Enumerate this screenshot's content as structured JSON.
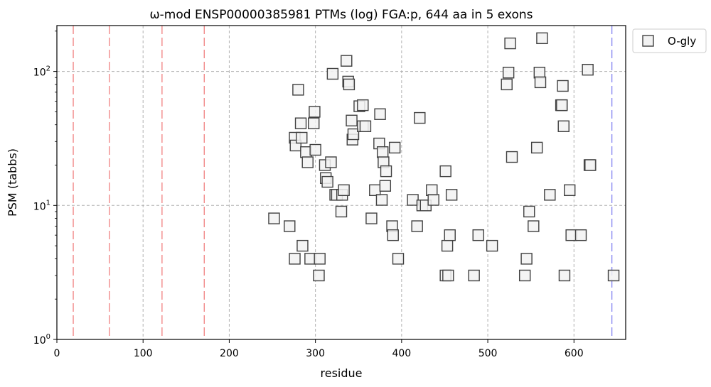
{
  "chart_data": {
    "type": "scatter",
    "title": "ω-mod ENSP00000385981 PTMs (log) FGA:p, 644 aa in 5 exons",
    "xlabel": "residue",
    "ylabel": "PSM (tabbs)",
    "xlim": [
      0,
      660
    ],
    "ylim": [
      1,
      220
    ],
    "yscale": "log",
    "grid": true,
    "legend_position": "outside-top-right",
    "x_ticks": [
      0,
      100,
      200,
      300,
      400,
      500,
      600
    ],
    "x_tick_labels": [
      "0",
      "100",
      "200",
      "300",
      "400",
      "500",
      "600"
    ],
    "y_ticks": [
      1,
      10,
      100
    ],
    "y_tick_labels": [
      {
        "base": "10",
        "exp": "0"
      },
      {
        "base": "10",
        "exp": "1"
      },
      {
        "base": "10",
        "exp": "2"
      }
    ],
    "exon_boundaries": [
      19,
      61,
      122,
      171
    ],
    "protein_end": 644,
    "colors": {
      "exon_line": "#f08080",
      "end_line": "#8080f0",
      "marker_edge": "#404040",
      "marker_fill": "#f2f2f2",
      "grid": "#b0b0b0"
    },
    "series": [
      {
        "name": "O-gly",
        "marker": "square",
        "points": [
          [
            252,
            8
          ],
          [
            270,
            7
          ],
          [
            276,
            4
          ],
          [
            276,
            32
          ],
          [
            277,
            28
          ],
          [
            280,
            73
          ],
          [
            283,
            41
          ],
          [
            284,
            32
          ],
          [
            285,
            5
          ],
          [
            289,
            25
          ],
          [
            291,
            21
          ],
          [
            294,
            4
          ],
          [
            298,
            41
          ],
          [
            299,
            50
          ],
          [
            300,
            26
          ],
          [
            304,
            3
          ],
          [
            305,
            4
          ],
          [
            311,
            20
          ],
          [
            312,
            16
          ],
          [
            314,
            15
          ],
          [
            318,
            21
          ],
          [
            320,
            96
          ],
          [
            323,
            12
          ],
          [
            325,
            12
          ],
          [
            330,
            9
          ],
          [
            331,
            12
          ],
          [
            333,
            13
          ],
          [
            336,
            120
          ],
          [
            338,
            84
          ],
          [
            339,
            80
          ],
          [
            342,
            43
          ],
          [
            343,
            31
          ],
          [
            344,
            34
          ],
          [
            351,
            55
          ],
          [
            355,
            56
          ],
          [
            355,
            39
          ],
          [
            358,
            39
          ],
          [
            365,
            8
          ],
          [
            369,
            13
          ],
          [
            374,
            29
          ],
          [
            375,
            48
          ],
          [
            377,
            11
          ],
          [
            378,
            25
          ],
          [
            379,
            21
          ],
          [
            381,
            14
          ],
          [
            382,
            18
          ],
          [
            389,
            7
          ],
          [
            390,
            6
          ],
          [
            392,
            27
          ],
          [
            396,
            4
          ],
          [
            413,
            11
          ],
          [
            418,
            7
          ],
          [
            421,
            45
          ],
          [
            424,
            10
          ],
          [
            428,
            10
          ],
          [
            435,
            13
          ],
          [
            437,
            11
          ],
          [
            451,
            18
          ],
          [
            451,
            3
          ],
          [
            453,
            5
          ],
          [
            454,
            3
          ],
          [
            456,
            6
          ],
          [
            458,
            12
          ],
          [
            484,
            3
          ],
          [
            489,
            6
          ],
          [
            505,
            5
          ],
          [
            522,
            80
          ],
          [
            524,
            98
          ],
          [
            526,
            162
          ],
          [
            528,
            23
          ],
          [
            543,
            3
          ],
          [
            545,
            4
          ],
          [
            548,
            9
          ],
          [
            553,
            7
          ],
          [
            557,
            27
          ],
          [
            560,
            98
          ],
          [
            561,
            83
          ],
          [
            563,
            177
          ],
          [
            572,
            12
          ],
          [
            585,
            56
          ],
          [
            586,
            56
          ],
          [
            587,
            78
          ],
          [
            588,
            39
          ],
          [
            589,
            3
          ],
          [
            595,
            13
          ],
          [
            597,
            6
          ],
          [
            608,
            6
          ],
          [
            616,
            103
          ],
          [
            618,
            20
          ],
          [
            619,
            20
          ],
          [
            646,
            3
          ]
        ]
      }
    ]
  }
}
